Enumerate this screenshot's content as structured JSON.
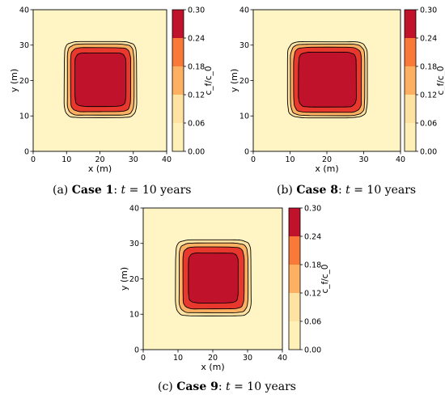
{
  "colors": {
    "background_level": "#fff5c4",
    "levels": [
      "#fff0b8",
      "#fde2a2",
      "#fdb062",
      "#f97a38",
      "#e8372c",
      "#c0122a"
    ],
    "contour_line": "#000000"
  },
  "chart_data": [
    {
      "type": "contour",
      "panel": "a",
      "xlabel": "x (m)",
      "ylabel": "y (m)",
      "xlim": [
        0,
        40
      ],
      "ylim": [
        0,
        40
      ],
      "xticks": [
        "0",
        "10",
        "20",
        "30",
        "40"
      ],
      "yticks": [
        "0",
        "10",
        "20",
        "30",
        "40"
      ],
      "colorbar": {
        "label": "c_f/c_0",
        "range": [
          0,
          0.3
        ],
        "ticks": [
          "0.00",
          "0.06",
          "0.12",
          "0.18",
          "0.24",
          "0.30"
        ]
      },
      "caption": {
        "tag": "(a)",
        "case": "Case 1",
        "var": "t",
        "value": "10 years"
      },
      "contour_levels": [
        {
          "level": 0.06,
          "x0": 9.3,
          "x1": 31.0,
          "y0": 9.5,
          "y1": 31.0
        },
        {
          "level": 0.12,
          "x0": 10.2,
          "x1": 30.2,
          "y0": 10.2,
          "y1": 30.3
        },
        {
          "level": 0.18,
          "x0": 11.2,
          "x1": 29.2,
          "y0": 11.2,
          "y1": 29.3
        },
        {
          "level": 0.24,
          "x0": 12.5,
          "x1": 27.8,
          "y0": 12.7,
          "y1": 27.8
        }
      ]
    },
    {
      "type": "contour",
      "panel": "b",
      "xlabel": "x (m)",
      "ylabel": "y (m)",
      "xlim": [
        0,
        40
      ],
      "ylim": [
        0,
        40
      ],
      "xticks": [
        "0",
        "10",
        "20",
        "30",
        "40"
      ],
      "yticks": [
        "0",
        "10",
        "20",
        "30",
        "40"
      ],
      "colorbar": {
        "label": "c_f/c_0",
        "range": [
          0,
          0.3
        ],
        "ticks": [
          "0.00",
          "0.06",
          "0.12",
          "0.18",
          "0.24",
          "0.30"
        ]
      },
      "caption": {
        "tag": "(b)",
        "case": "Case 8",
        "var": "t",
        "value": "10 years"
      },
      "contour_levels": [
        {
          "level": 0.06,
          "x0": 9.3,
          "x1": 31.0,
          "y0": 9.5,
          "y1": 31.0
        },
        {
          "level": 0.12,
          "x0": 10.1,
          "x1": 30.3,
          "y0": 10.1,
          "y1": 30.3
        },
        {
          "level": 0.18,
          "x0": 11.0,
          "x1": 29.4,
          "y0": 11.0,
          "y1": 29.4
        },
        {
          "level": 0.24,
          "x0": 12.3,
          "x1": 28.0,
          "y0": 12.5,
          "y1": 28.0
        }
      ]
    },
    {
      "type": "contour",
      "panel": "c",
      "xlabel": "x (m)",
      "ylabel": "y (m)",
      "xlim": [
        0,
        40
      ],
      "ylim": [
        0,
        40
      ],
      "xticks": [
        "0",
        "10",
        "20",
        "30",
        "40"
      ],
      "yticks": [
        "0",
        "10",
        "20",
        "30",
        "40"
      ],
      "colorbar": {
        "label": "c_f/c_0",
        "range": [
          0,
          0.3
        ],
        "ticks": [
          "0.00",
          "0.06",
          "0.12",
          "0.18",
          "0.24",
          "0.30"
        ]
      },
      "caption": {
        "tag": "(c)",
        "case": "Case 9",
        "var": "t",
        "value": "10 years"
      },
      "contour_levels": [
        {
          "level": 0.06,
          "x0": 9.3,
          "x1": 31.0,
          "y0": 9.5,
          "y1": 31.0
        },
        {
          "level": 0.12,
          "x0": 10.3,
          "x1": 30.1,
          "y0": 10.4,
          "y1": 30.1
        },
        {
          "level": 0.18,
          "x0": 11.4,
          "x1": 29.0,
          "y0": 11.5,
          "y1": 29.0
        },
        {
          "level": 0.24,
          "x0": 13.0,
          "x1": 27.3,
          "y0": 13.2,
          "y1": 27.3
        }
      ]
    }
  ]
}
